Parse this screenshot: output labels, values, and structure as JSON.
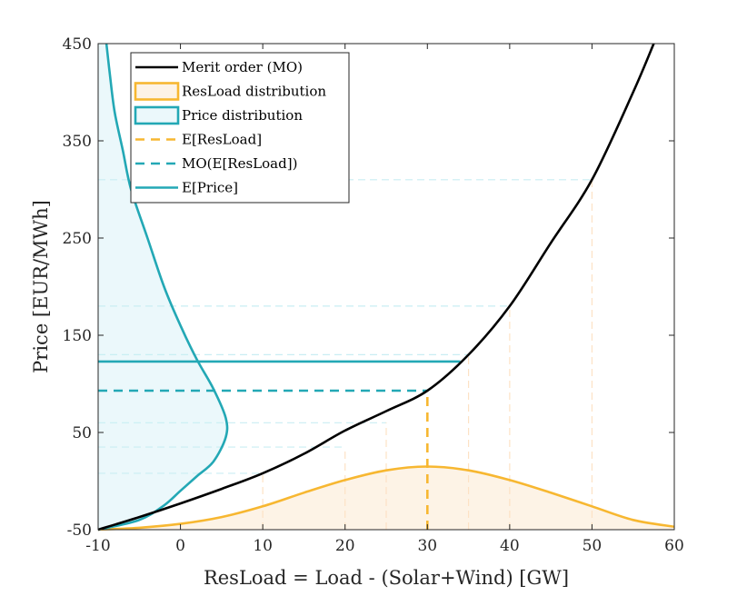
{
  "chart_data": {
    "type": "line",
    "title": "",
    "xlabel": "ResLoad = Load - (Solar+Wind) [GW]",
    "ylabel": "Price [EUR/MWh]",
    "xlim": [
      -10,
      60
    ],
    "ylim": [
      -50,
      450
    ],
    "xticks": [
      -10,
      0,
      10,
      20,
      30,
      40,
      50,
      60
    ],
    "yticks": [
      -50,
      50,
      150,
      250,
      350,
      450
    ],
    "legend_position": "top-left",
    "colors": {
      "merit_order": "#000000",
      "resload": "#f7b731",
      "resload_fill": "#fdf3e6",
      "price": "#23a8b5",
      "price_fill": "#ebf8fb",
      "guide_teal": "#c9eef3",
      "guide_orange": "#fde2c5"
    },
    "series": [
      {
        "name": "Merit order (MO)",
        "style": "solid",
        "color": "#000000",
        "x": [
          -10,
          -5,
          0,
          5,
          10,
          15,
          20,
          25,
          30,
          35,
          40,
          45,
          50,
          55,
          57.5
        ],
        "y": [
          -50,
          -37,
          -23,
          -8,
          8,
          28,
          52,
          72,
          93,
          130,
          180,
          245,
          310,
          400,
          450
        ]
      },
      {
        "name": "ResLoad distribution",
        "style": "solid",
        "color": "#f7b731",
        "fill": true,
        "x": [
          -10,
          -5,
          0,
          5,
          10,
          15,
          20,
          25,
          30,
          35,
          40,
          45,
          50,
          55,
          60
        ],
        "y": [
          -50,
          -48,
          -44,
          -37,
          -26,
          -12,
          1,
          11,
          15,
          11,
          1,
          -12,
          -26,
          -40,
          -47
        ]
      },
      {
        "name": "Price distribution",
        "style": "solid",
        "color": "#23a8b5",
        "fill": true,
        "x": [
          -10,
          -5,
          -2,
          0,
          2,
          4,
          5.5,
          5.5,
          4,
          2,
          0,
          -2,
          -4,
          -6,
          -7,
          -8,
          -8.6,
          -9
        ],
        "y": [
          -50,
          -40,
          -25,
          -10,
          5,
          20,
          45,
          65,
          95,
          125,
          160,
          200,
          250,
          300,
          340,
          380,
          420,
          450
        ]
      },
      {
        "name": "E[ResLoad]",
        "style": "dashed",
        "color": "#f7b731",
        "x": [
          30,
          30
        ],
        "y": [
          -50,
          93
        ]
      },
      {
        "name": "MO(E[ResLoad])",
        "style": "dashed",
        "color": "#23a8b5",
        "x": [
          -10,
          30
        ],
        "y": [
          93,
          93
        ]
      },
      {
        "name": "E[Price]",
        "style": "solid",
        "color": "#23a8b5",
        "x": [
          -10,
          34
        ],
        "y": [
          123,
          123
        ]
      }
    ],
    "guides": [
      {
        "x": 10,
        "y": 8
      },
      {
        "x": 20,
        "y": 35
      },
      {
        "x": 25,
        "y": 60
      },
      {
        "x": 35,
        "y": 130
      },
      {
        "x": 40,
        "y": 180
      },
      {
        "x": 50,
        "y": 310
      }
    ]
  }
}
